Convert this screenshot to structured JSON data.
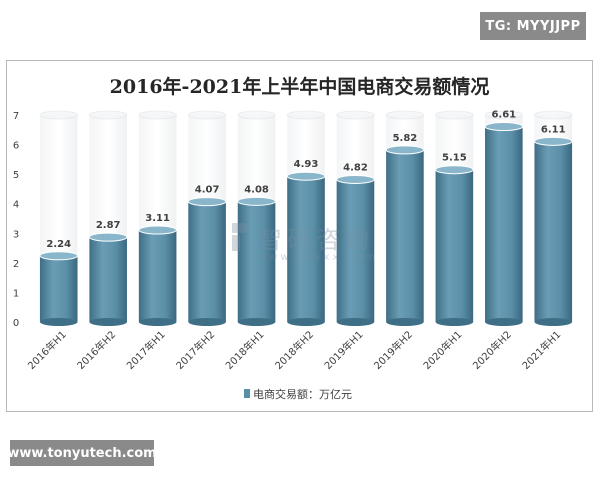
{
  "badge": {
    "text": "TG: MYYJJPP"
  },
  "footer": {
    "text": "www.tonyutech.com"
  },
  "watermark": {
    "name": "智研咨询",
    "url": "www.chyxx.com"
  },
  "chart_data": {
    "type": "bar",
    "title": "2016年-2021年上半年中国电商交易额情况",
    "categories": [
      "2016年H1",
      "2016年H2",
      "2017年H1",
      "2017年H2",
      "2018年H1",
      "2018年H2",
      "2019年H1",
      "2019年H2",
      "2020年H1",
      "2020年H2",
      "2021年H1"
    ],
    "series": [
      {
        "name": "电商交易额：万亿元",
        "values": [
          2.24,
          2.87,
          3.11,
          4.07,
          4.08,
          4.93,
          4.82,
          5.82,
          5.15,
          6.61,
          6.11
        ]
      }
    ],
    "value_labels": [
      "2.24",
      "2.87",
      "3.11",
      "4.07",
      "4.08",
      "4.93",
      "4.82",
      "5.82",
      "5.15",
      "6.61",
      "6.11"
    ],
    "ylim": [
      0,
      7
    ],
    "yticks": [
      0,
      1,
      2,
      3,
      4,
      5,
      6,
      7
    ],
    "xlabel": "",
    "ylabel": "",
    "legend_position": "bottom-center",
    "grid": false,
    "colors": {
      "bar": "#5b8fa8",
      "bar_dark": "#3f6f87",
      "bar_light": "#8ab6cb",
      "frame": "#d0d0d0"
    }
  }
}
